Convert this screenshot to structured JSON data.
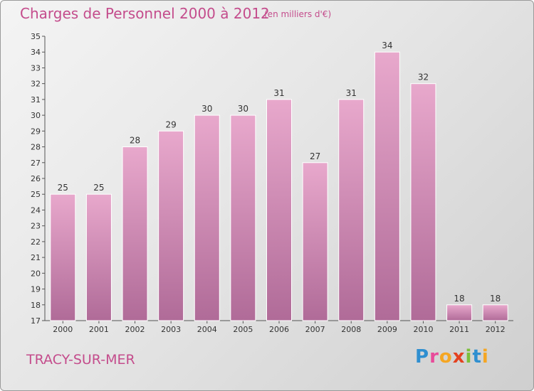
{
  "header": {
    "title": "Charges de Personnel 2000 à 2012",
    "subtitle": "(en milliers d'€)"
  },
  "footer": {
    "city": "TRACY-SUR-MER",
    "logo": "Proxiti"
  },
  "colors": {
    "accent": "#c44c8c",
    "bar_light": "#e8a8cc",
    "bar_dark": "#b06b98"
  },
  "chart_data": {
    "type": "bar",
    "categories": [
      "2000",
      "2001",
      "2002",
      "2003",
      "2004",
      "2005",
      "2006",
      "2007",
      "2008",
      "2009",
      "2010",
      "2011",
      "2012"
    ],
    "values": [
      25,
      25,
      28,
      29,
      30,
      30,
      31,
      27,
      31,
      34,
      32,
      18,
      18
    ],
    "title": "Charges de Personnel 2000 à 2012",
    "subtitle": "(en milliers d'€)",
    "xlabel": "",
    "ylabel": "",
    "ylim": [
      17,
      35
    ],
    "yticks": [
      17,
      18,
      19,
      20,
      21,
      22,
      23,
      24,
      25,
      26,
      27,
      28,
      29,
      30,
      31,
      32,
      33,
      34,
      35
    ],
    "grid": false,
    "data_labels": true
  }
}
